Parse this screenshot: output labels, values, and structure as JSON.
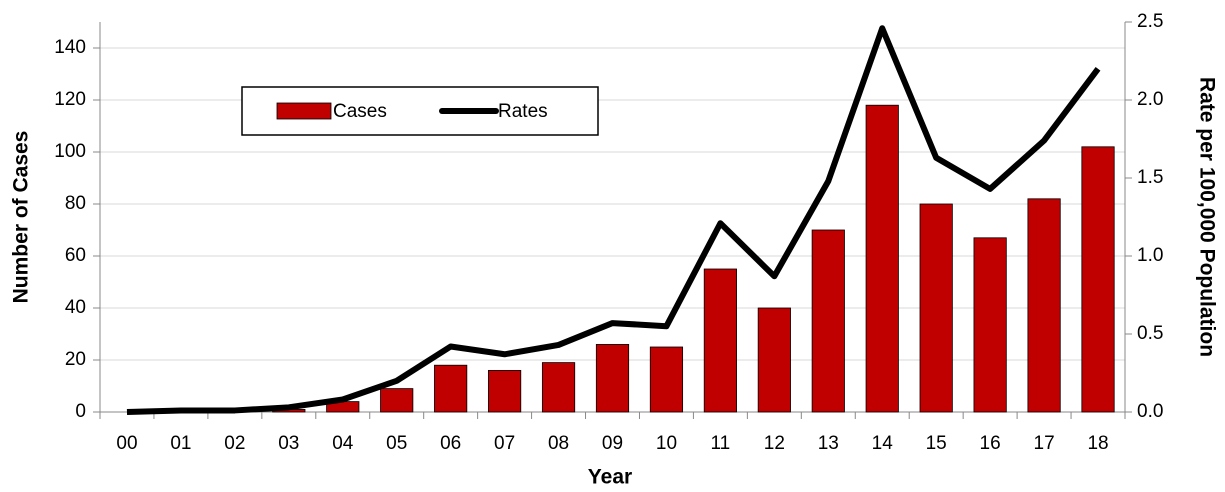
{
  "chart_data": {
    "type": "combo",
    "x_label": "Year",
    "y_label": "Number of Cases",
    "y2_label": "Rate per 100,000 Population",
    "categories": [
      "00",
      "01",
      "02",
      "03",
      "04",
      "05",
      "06",
      "07",
      "08",
      "09",
      "10",
      "11",
      "12",
      "13",
      "14",
      "15",
      "16",
      "17",
      "18"
    ],
    "series": [
      {
        "name": "Cases",
        "type": "bar",
        "color": "#c00000",
        "values": [
          0,
          0,
          0,
          1,
          4,
          9,
          18,
          16,
          19,
          26,
          25,
          55,
          40,
          70,
          118,
          80,
          67,
          82,
          102
        ]
      },
      {
        "name": "Rates",
        "type": "line",
        "color": "#000000",
        "axis": "y2",
        "values": [
          0.0,
          0.01,
          0.01,
          0.03,
          0.08,
          0.2,
          0.42,
          0.37,
          0.43,
          0.57,
          0.55,
          1.21,
          0.87,
          1.48,
          2.46,
          1.63,
          1.43,
          1.74,
          2.2
        ]
      }
    ],
    "ylim": [
      0,
      150
    ],
    "yticks": [
      0,
      20,
      40,
      60,
      80,
      100,
      120,
      140
    ],
    "y2lim": [
      0,
      2.5
    ],
    "y2ticks": [
      {
        "value": 0,
        "label": "0.0"
      },
      0.5,
      {
        "value": 1,
        "label": "1.0"
      },
      1.5,
      {
        "value": 2,
        "label": "2.0"
      },
      2.5
    ],
    "grid": true,
    "legend": "upper left"
  }
}
